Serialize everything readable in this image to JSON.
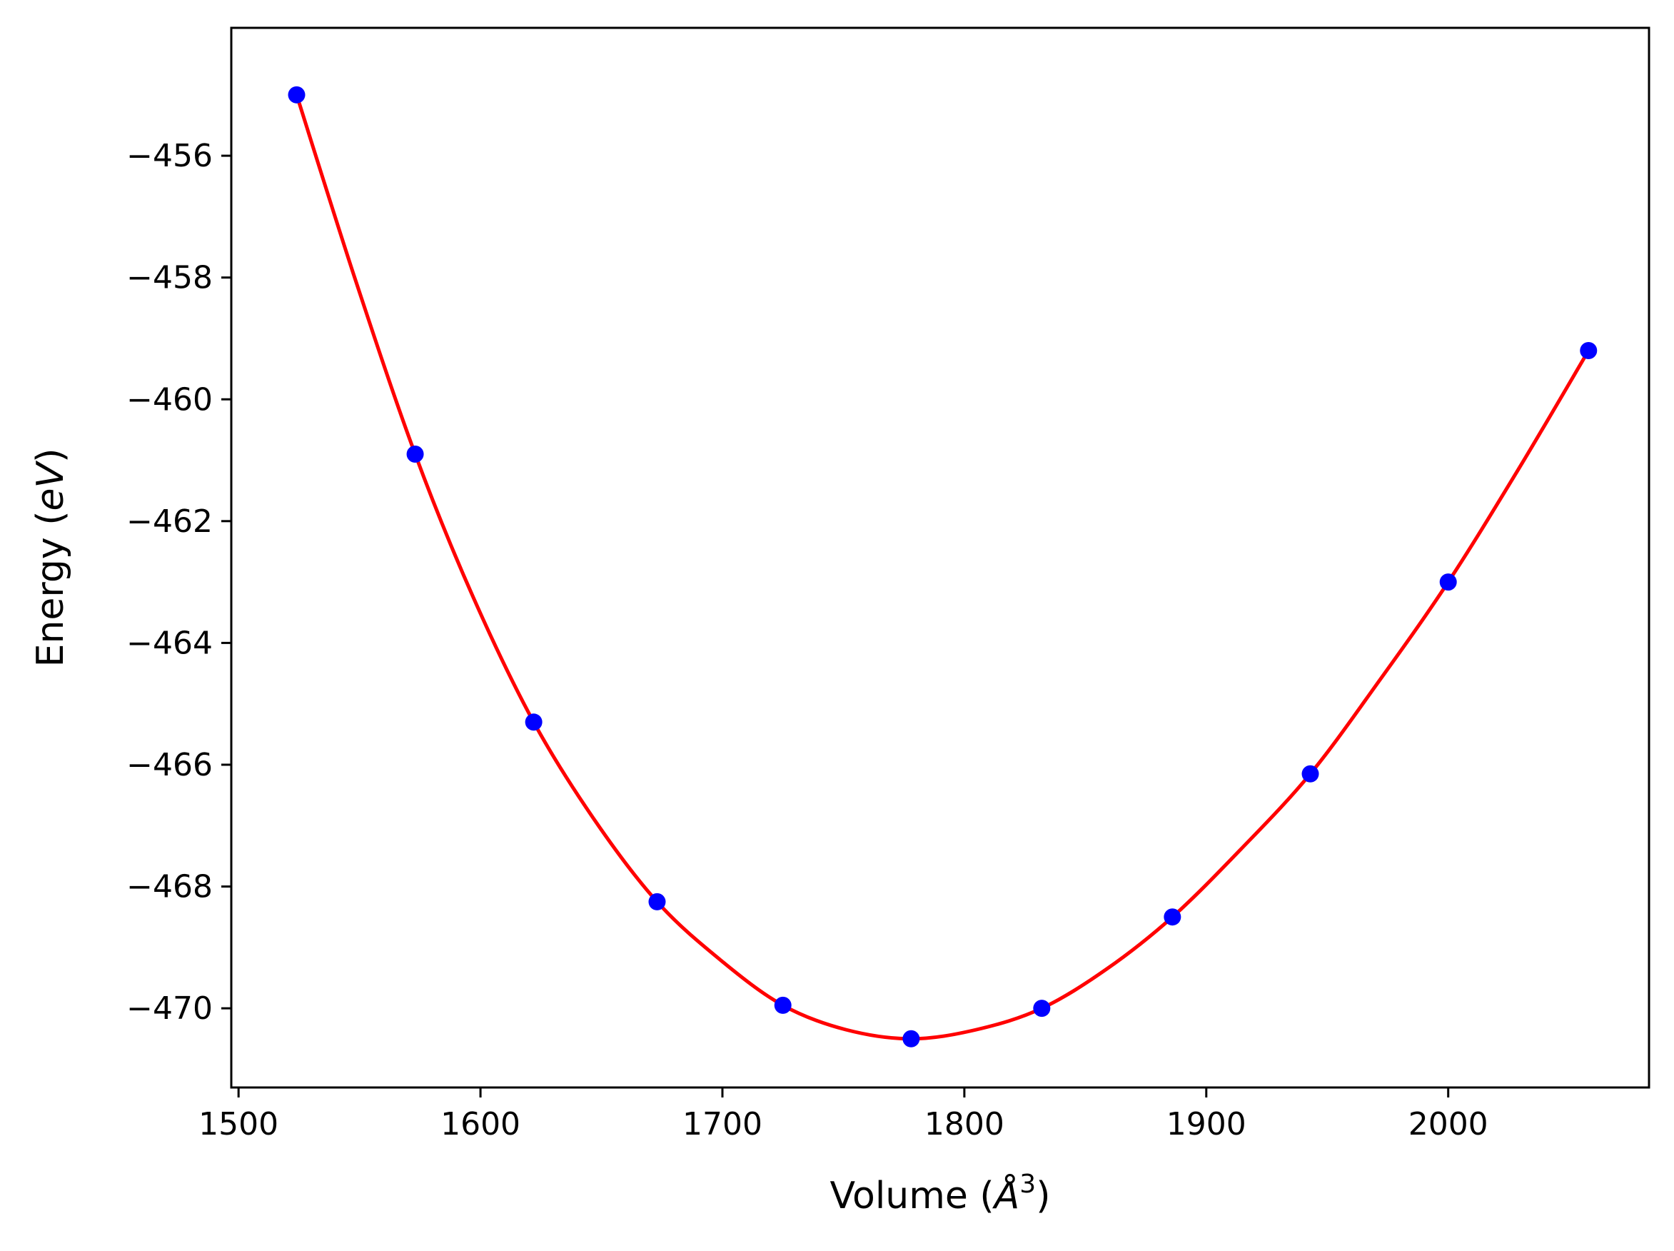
{
  "chart_data": {
    "type": "line",
    "title": "",
    "xlabel": {
      "prefix": "Volume (",
      "symbol": "Å",
      "sup": "3",
      "suffix": ")"
    },
    "ylabel": {
      "prefix": "Energy (",
      "italic": "eV",
      "suffix": ")"
    },
    "xlim": [
      1497,
      2083
    ],
    "ylim": [
      -471.3,
      -453.9
    ],
    "xticks": [
      1500,
      1600,
      1700,
      1800,
      1900,
      2000
    ],
    "xtick_labels": [
      "1500",
      "1600",
      "1700",
      "1800",
      "1900",
      "2000"
    ],
    "yticks": [
      -456,
      -458,
      -460,
      -462,
      -464,
      -466,
      -468,
      -470
    ],
    "ytick_labels": [
      "−456",
      "−458",
      "−460",
      "−462",
      "−464",
      "−466",
      "−468",
      "−470"
    ],
    "grid": false,
    "legend": "none",
    "series": [
      {
        "kind": "scatter",
        "color": "#0000ff",
        "points": [
          {
            "x": 1524,
            "y": -455.0
          },
          {
            "x": 1573,
            "y": -460.9
          },
          {
            "x": 1622,
            "y": -465.3
          },
          {
            "x": 1673,
            "y": -468.25
          },
          {
            "x": 1725,
            "y": -469.95
          },
          {
            "x": 1778,
            "y": -470.5
          },
          {
            "x": 1832,
            "y": -470.0
          },
          {
            "x": 1886,
            "y": -468.5
          },
          {
            "x": 1943,
            "y": -466.15
          },
          {
            "x": 2000,
            "y": -463.0
          },
          {
            "x": 2058,
            "y": -459.2
          }
        ]
      },
      {
        "kind": "line",
        "color": "#ff0000",
        "points": [
          {
            "x": 1524,
            "y": -455.0
          },
          {
            "x": 1548,
            "y": -458.0
          },
          {
            "x": 1573,
            "y": -460.9
          },
          {
            "x": 1597,
            "y": -463.25
          },
          {
            "x": 1622,
            "y": -465.3
          },
          {
            "x": 1647,
            "y": -466.9
          },
          {
            "x": 1673,
            "y": -468.25
          },
          {
            "x": 1699,
            "y": -469.2
          },
          {
            "x": 1725,
            "y": -469.95
          },
          {
            "x": 1751,
            "y": -470.35
          },
          {
            "x": 1778,
            "y": -470.5
          },
          {
            "x": 1805,
            "y": -470.35
          },
          {
            "x": 1832,
            "y": -470.0
          },
          {
            "x": 1859,
            "y": -469.35
          },
          {
            "x": 1886,
            "y": -468.5
          },
          {
            "x": 1914,
            "y": -467.4
          },
          {
            "x": 1943,
            "y": -466.15
          },
          {
            "x": 1971,
            "y": -464.65
          },
          {
            "x": 2000,
            "y": -463.0
          },
          {
            "x": 2029,
            "y": -461.15
          },
          {
            "x": 2058,
            "y": -459.2
          }
        ]
      }
    ]
  }
}
